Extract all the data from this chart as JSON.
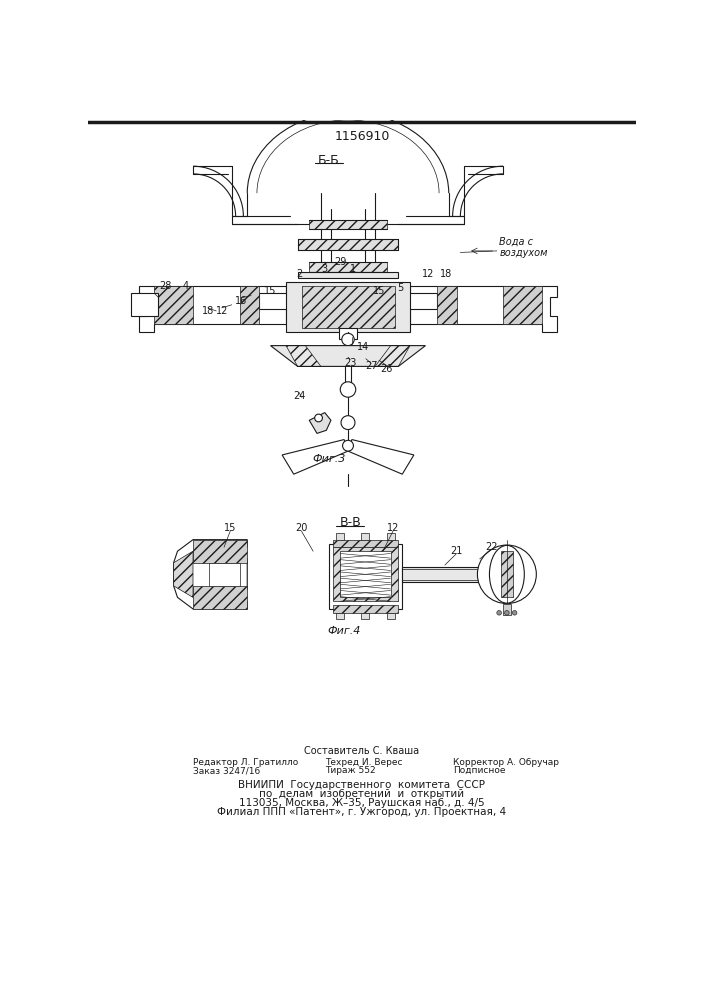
{
  "patent_number": "1156910",
  "fig3_label": "Б-Б",
  "fig4_label": "В-В",
  "fig3_caption": "Фиг.3",
  "fig4_caption": "Фиг.4",
  "water_label": "Вода с\nвоздухом",
  "footer_composer": "Составитель С. Кваша",
  "footer_editor": "Редактор Л. Гратилло",
  "footer_tech": "Техред И. Верес",
  "footer_corrector": "Корректор А. Обручар",
  "footer_order": "Заказ 3247/16",
  "footer_print": "Тираж 552",
  "footer_sign": "Подписное",
  "footer_vniip1": "ВНИИПИ  Государственного  комитета  СССР",
  "footer_vniip2": "по  делам  изобретений  и  открытий",
  "footer_vniip3": "113035, Москва, Ж–35, Раушская наб., д. 4/5",
  "footer_vniip4": "Филиал ППП «Патент», г. Ужгород, ул. Проектная, 4",
  "bg_color": "#ffffff",
  "line_color": "#1a1a1a"
}
